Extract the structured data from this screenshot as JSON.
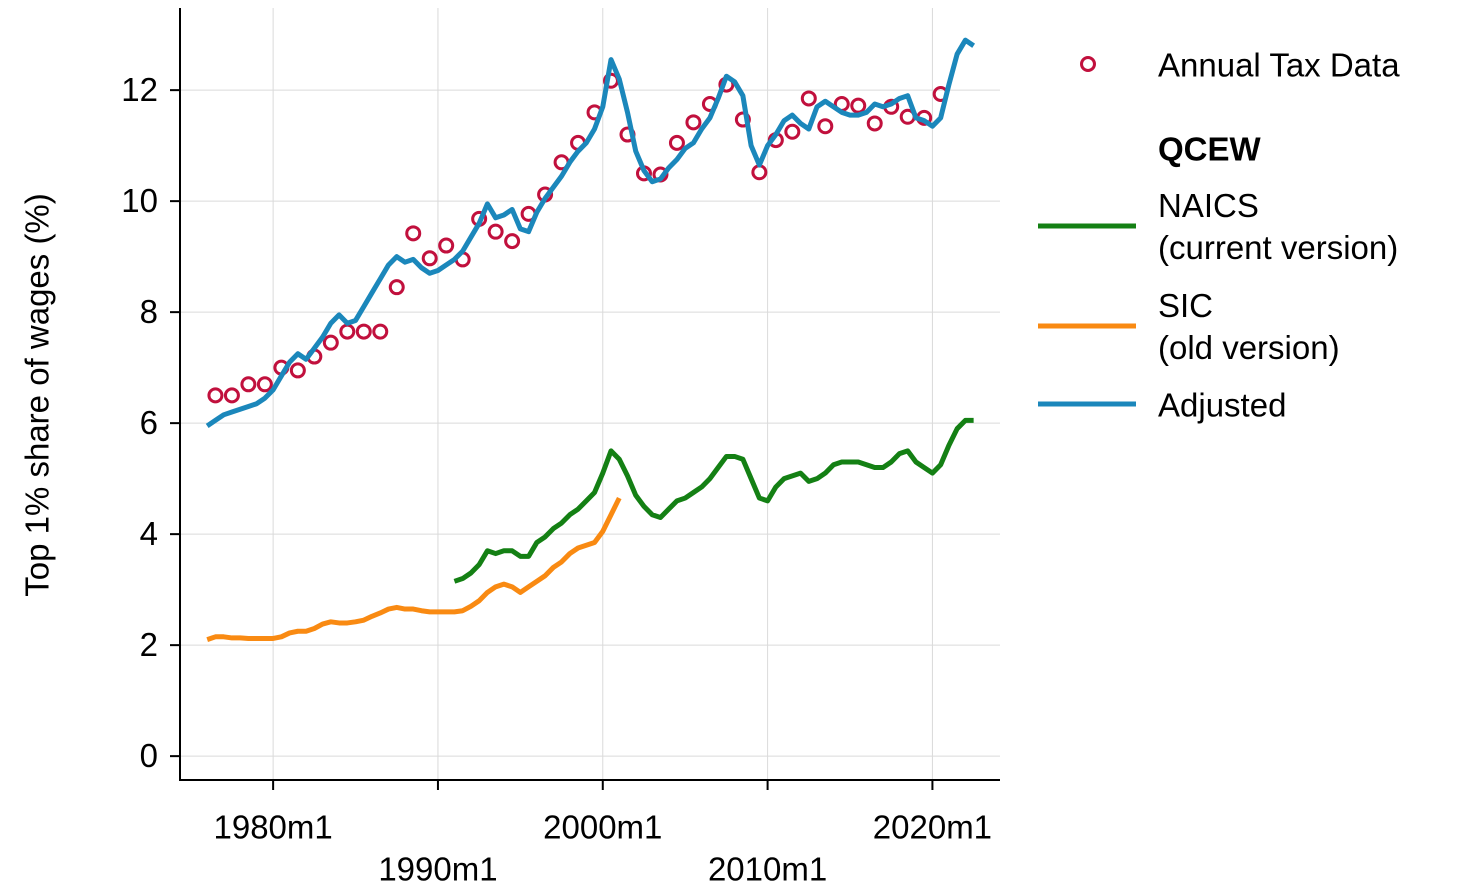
{
  "chart_data": {
    "type": "line",
    "ylabel": "Top 1% share of wages (%)",
    "legend_group_title": "QCEW",
    "legend": "right",
    "grid": true,
    "xlim": [
      1974.35,
      2024.1
    ],
    "ylim": [
      -0.43,
      13.48
    ],
    "xticks": [
      {
        "value": 1980,
        "label": "1980m1"
      },
      {
        "value": 1990,
        "label": "1990m1"
      },
      {
        "value": 2000,
        "label": "2000m1"
      },
      {
        "value": 2010,
        "label": "2010m1"
      },
      {
        "value": 2020,
        "label": "2020m1"
      }
    ],
    "yticks": [
      0,
      2,
      4,
      6,
      8,
      10,
      12
    ],
    "x": [
      1976,
      1976.5,
      1977,
      1977.5,
      1978,
      1978.5,
      1979,
      1979.5,
      1980,
      1980.5,
      1981,
      1981.5,
      1982,
      1982.5,
      1983,
      1983.5,
      1984,
      1984.5,
      1985,
      1985.5,
      1986,
      1986.5,
      1987,
      1987.5,
      1988,
      1988.5,
      1989,
      1989.5,
      1990,
      1990.5,
      1991,
      1991.5,
      1992,
      1992.5,
      1993,
      1993.5,
      1994,
      1994.5,
      1995,
      1995.5,
      1996,
      1996.5,
      1997,
      1997.5,
      1998,
      1998.5,
      1999,
      1999.5,
      2000,
      2000.5,
      2001,
      2001.5,
      2002,
      2002.5,
      2003,
      2003.5,
      2004,
      2004.5,
      2005,
      2005.5,
      2006,
      2006.5,
      2007,
      2007.5,
      2008,
      2008.5,
      2009,
      2009.5,
      2010,
      2010.5,
      2011,
      2011.5,
      2012,
      2012.5,
      2013,
      2013.5,
      2014,
      2014.5,
      2015,
      2015.5,
      2016,
      2016.5,
      2017,
      2017.5,
      2018,
      2018.5,
      2019,
      2019.5,
      2020,
      2020.5,
      2021,
      2021.5,
      2022,
      2022.5
    ],
    "series": [
      {
        "name": "Annual Tax Data",
        "type": "scatter",
        "color": "#c1103d",
        "x": [
          1976.5,
          1977.5,
          1978.5,
          1979.5,
          1980.5,
          1981.5,
          1982.5,
          1983.5,
          1984.5,
          1985.5,
          1986.5,
          1987.5,
          1988.5,
          1989.5,
          1990.5,
          1991.5,
          1992.5,
          1993.5,
          1994.5,
          1995.5,
          1996.5,
          1997.5,
          1998.5,
          1999.5,
          2000.5,
          2001.5,
          2002.5,
          2003.5,
          2004.5,
          2005.5,
          2006.5,
          2007.5,
          2008.5,
          2009.5,
          2010.5,
          2011.5,
          2012.5,
          2013.5,
          2014.5,
          2015.5,
          2016.5,
          2017.5,
          2018.5,
          2019.5,
          2020.5
        ],
        "values": [
          6.5,
          6.5,
          6.7,
          6.7,
          7.0,
          6.95,
          7.2,
          7.45,
          7.65,
          7.65,
          7.65,
          8.45,
          9.42,
          8.97,
          9.2,
          8.95,
          9.68,
          9.45,
          9.28,
          9.77,
          10.12,
          10.7,
          11.05,
          11.6,
          12.17,
          11.2,
          10.5,
          10.48,
          11.05,
          11.42,
          11.75,
          12.1,
          11.47,
          10.52,
          11.1,
          11.25,
          11.85,
          11.35,
          11.75,
          11.72,
          11.4,
          11.7,
          11.52,
          11.5,
          11.93
        ]
      },
      {
        "name": "NAICS (current version)",
        "type": "line",
        "color": "#148014",
        "values": [
          null,
          null,
          null,
          null,
          null,
          null,
          null,
          null,
          null,
          null,
          null,
          null,
          null,
          null,
          null,
          null,
          null,
          null,
          null,
          null,
          null,
          null,
          null,
          null,
          null,
          null,
          null,
          null,
          null,
          null,
          3.15,
          3.2,
          3.3,
          3.45,
          3.7,
          3.65,
          3.7,
          3.7,
          3.6,
          3.6,
          3.85,
          3.95,
          4.1,
          4.2,
          4.35,
          4.45,
          4.6,
          4.75,
          5.1,
          5.5,
          5.35,
          5.05,
          4.7,
          4.5,
          4.35,
          4.3,
          4.45,
          4.6,
          4.65,
          4.75,
          4.85,
          5.0,
          5.2,
          5.4,
          5.4,
          5.35,
          5.0,
          4.65,
          4.6,
          4.85,
          5.0,
          5.05,
          5.1,
          4.95,
          5.0,
          5.1,
          5.25,
          5.3,
          5.3,
          5.3,
          5.25,
          5.2,
          5.2,
          5.3,
          5.45,
          5.5,
          5.3,
          5.2,
          5.1,
          5.25,
          5.6,
          5.9,
          6.05,
          6.05
        ]
      },
      {
        "name": "SIC (old version)",
        "type": "line",
        "color": "#f98a12",
        "values": [
          2.1,
          2.15,
          2.15,
          2.13,
          2.13,
          2.12,
          2.12,
          2.12,
          2.12,
          2.15,
          2.22,
          2.25,
          2.25,
          2.3,
          2.38,
          2.42,
          2.4,
          2.4,
          2.42,
          2.45,
          2.52,
          2.58,
          2.65,
          2.68,
          2.65,
          2.65,
          2.62,
          2.6,
          2.6,
          2.6,
          2.6,
          2.62,
          2.7,
          2.8,
          2.95,
          3.05,
          3.1,
          3.05,
          2.95,
          3.05,
          3.15,
          3.25,
          3.4,
          3.5,
          3.65,
          3.75,
          3.8,
          3.85,
          4.05,
          4.35,
          4.65,
          null,
          null,
          null,
          null,
          null,
          null,
          null,
          null,
          null,
          null,
          null,
          null,
          null,
          null,
          null,
          null,
          null,
          null,
          null,
          null,
          null,
          null,
          null,
          null,
          null,
          null,
          null,
          null,
          null,
          null,
          null,
          null,
          null,
          null,
          null,
          null,
          null,
          null,
          null,
          null,
          null,
          null,
          null
        ]
      },
      {
        "name": "Adjusted",
        "type": "line",
        "color": "#1b87bb",
        "values": [
          5.95,
          6.05,
          6.15,
          6.2,
          6.25,
          6.3,
          6.35,
          6.45,
          6.6,
          6.85,
          7.1,
          7.25,
          7.15,
          7.35,
          7.55,
          7.8,
          7.95,
          7.8,
          7.85,
          8.1,
          8.35,
          8.6,
          8.85,
          9.0,
          8.9,
          8.95,
          8.8,
          8.7,
          8.75,
          8.85,
          8.95,
          9.1,
          9.35,
          9.6,
          9.95,
          9.7,
          9.75,
          9.85,
          9.5,
          9.45,
          9.8,
          10.05,
          10.25,
          10.45,
          10.7,
          10.9,
          11.05,
          11.3,
          11.7,
          12.55,
          12.2,
          11.6,
          10.9,
          10.55,
          10.35,
          10.4,
          10.6,
          10.75,
          10.95,
          11.05,
          11.3,
          11.5,
          11.85,
          12.25,
          12.15,
          11.9,
          11.0,
          10.65,
          11.0,
          11.2,
          11.45,
          11.55,
          11.4,
          11.3,
          11.7,
          11.8,
          11.7,
          11.6,
          11.55,
          11.55,
          11.6,
          11.75,
          11.7,
          11.75,
          11.85,
          11.9,
          11.5,
          11.45,
          11.35,
          11.5,
          12.1,
          12.65,
          12.9,
          12.8
        ]
      }
    ]
  }
}
